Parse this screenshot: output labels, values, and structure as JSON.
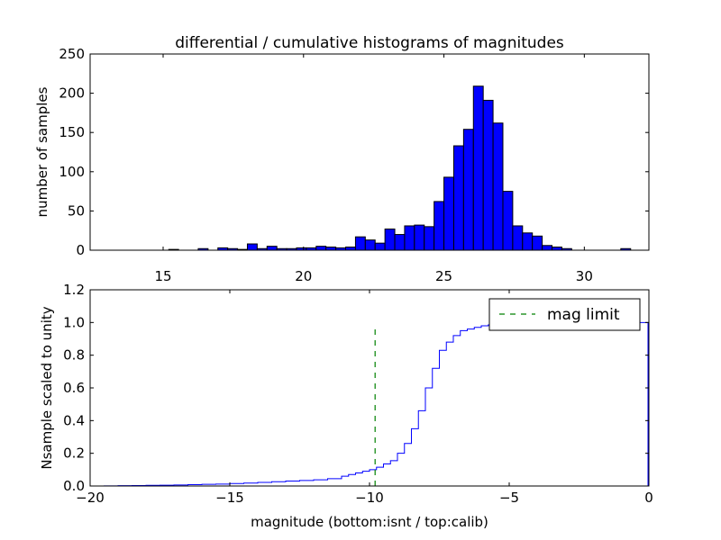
{
  "chart_data": [
    {
      "type": "bar",
      "title": "differential / cumulative histograms of magnitudes",
      "xlabel": "",
      "ylabel": "number of samples",
      "xlim": [
        12.4,
        32.3
      ],
      "ylim": [
        0,
        250
      ],
      "xticks": [
        15,
        20,
        25,
        30
      ],
      "yticks": [
        0,
        50,
        100,
        150,
        200,
        250
      ],
      "grid": false,
      "bar_color": "#0000ff",
      "bin_edges": [
        14.5,
        14.85,
        15.2,
        15.55,
        15.9,
        16.25,
        16.6,
        16.95,
        17.3,
        17.65,
        18.0,
        18.35,
        18.7,
        19.05,
        19.4,
        19.75,
        20.1,
        20.45,
        20.8,
        21.15,
        21.5,
        21.85,
        22.2,
        22.55,
        22.9,
        23.25,
        23.6,
        23.95,
        24.3,
        24.65,
        25.0,
        25.35,
        25.7,
        26.05,
        26.4,
        26.75,
        27.1,
        27.45,
        27.8,
        28.15,
        28.5,
        28.85,
        29.2,
        29.55,
        29.9,
        30.25,
        30.6,
        30.95,
        31.3,
        31.65,
        32.0
      ],
      "values": [
        0,
        0,
        1,
        0,
        0,
        2,
        0,
        3,
        2,
        1,
        8,
        2,
        5,
        2,
        2,
        3,
        3,
        5,
        4,
        3,
        4,
        17,
        13,
        9,
        27,
        20,
        31,
        32,
        30,
        62,
        93,
        133,
        154,
        209,
        191,
        162,
        75,
        31,
        22,
        18,
        6,
        4,
        2,
        0,
        0,
        0,
        0,
        0,
        2,
        0
      ]
    },
    {
      "type": "line",
      "title": "",
      "xlabel": "magnitude (bottom:isnt / top:calib)",
      "ylabel": "Nsample scaled to unity",
      "xlim": [
        -20,
        0
      ],
      "ylim": [
        0,
        1.2
      ],
      "xticks": [
        -20,
        -15,
        -10,
        -5,
        0
      ],
      "yticks": [
        0.0,
        0.2,
        0.4,
        0.6,
        0.8,
        1.0,
        1.2
      ],
      "grid": false,
      "legend_placement": "top-right",
      "series": [
        {
          "name": "",
          "color": "#0000ff",
          "style": "steps",
          "x": [
            -20,
            -19.5,
            -19,
            -18.5,
            -18,
            -17.5,
            -17,
            -16.5,
            -16,
            -15.5,
            -15,
            -14.5,
            -14,
            -13.5,
            -13,
            -12.5,
            -12,
            -11.5,
            -11,
            -10.75,
            -10.5,
            -10.25,
            -10,
            -9.75,
            -9.5,
            -9.25,
            -9,
            -8.75,
            -8.5,
            -8.25,
            -8,
            -7.75,
            -7.5,
            -7.25,
            -7,
            -6.75,
            -6.5,
            -6.25,
            -6,
            -5.75,
            -5.5,
            -5,
            -4,
            -3,
            -2,
            -1,
            -0.05
          ],
          "y": [
            0.0,
            0.001,
            0.002,
            0.003,
            0.004,
            0.005,
            0.006,
            0.008,
            0.01,
            0.012,
            0.015,
            0.018,
            0.022,
            0.026,
            0.03,
            0.034,
            0.038,
            0.045,
            0.06,
            0.07,
            0.08,
            0.09,
            0.1,
            0.115,
            0.135,
            0.155,
            0.2,
            0.26,
            0.35,
            0.46,
            0.6,
            0.72,
            0.83,
            0.88,
            0.92,
            0.95,
            0.96,
            0.97,
            0.98,
            0.985,
            0.99,
            0.995,
            0.998,
            0.999,
            1.0,
            1.0,
            1.0
          ]
        },
        {
          "name": "mag limit",
          "color": "#008000",
          "style": "dashed",
          "vline_x": -9.8,
          "y_range": [
            0,
            0.97
          ]
        }
      ]
    }
  ]
}
